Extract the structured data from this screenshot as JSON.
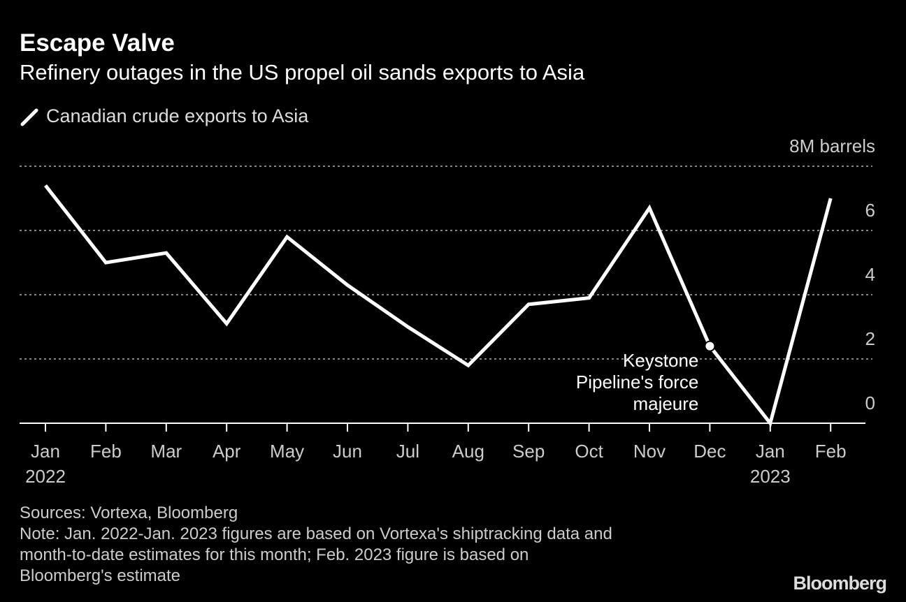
{
  "chart_data": {
    "type": "line",
    "title": "Escape Valve",
    "subtitle": "Refinery outages in the US propel oil sands exports to Asia",
    "categories": [
      "Jan\n2022",
      "Feb",
      "Mar",
      "Apr",
      "May",
      "Jun",
      "Jul",
      "Aug",
      "Sep",
      "Oct",
      "Nov",
      "Dec",
      "Jan\n2023",
      "Feb"
    ],
    "series": [
      {
        "name": "Canadian crude exports to Asia",
        "color": "#ffffff",
        "values": [
          7.4,
          5.0,
          5.3,
          3.1,
          5.8,
          4.3,
          3.0,
          1.8,
          3.7,
          3.9,
          6.7,
          2.4,
          0.0,
          7.0
        ]
      }
    ],
    "ylim": [
      0,
      8
    ],
    "yticks": [
      0,
      2,
      4,
      6,
      {
        "value": 8,
        "label": "8M barrels"
      }
    ],
    "grid": true,
    "annotation": {
      "text": "Keystone\nPipeline's force\nmajeure",
      "x": "Dec"
    },
    "source": "Sources: Vortexa, Bloomberg",
    "note": "Note: Jan. 2022-Jan. 2023 figures are based on Vortexa's shiptracking data and\nmonth-to-date estimates for this month; Feb. 2023 figure is based on\nBloomberg's estimate",
    "brand": "Bloomberg"
  }
}
